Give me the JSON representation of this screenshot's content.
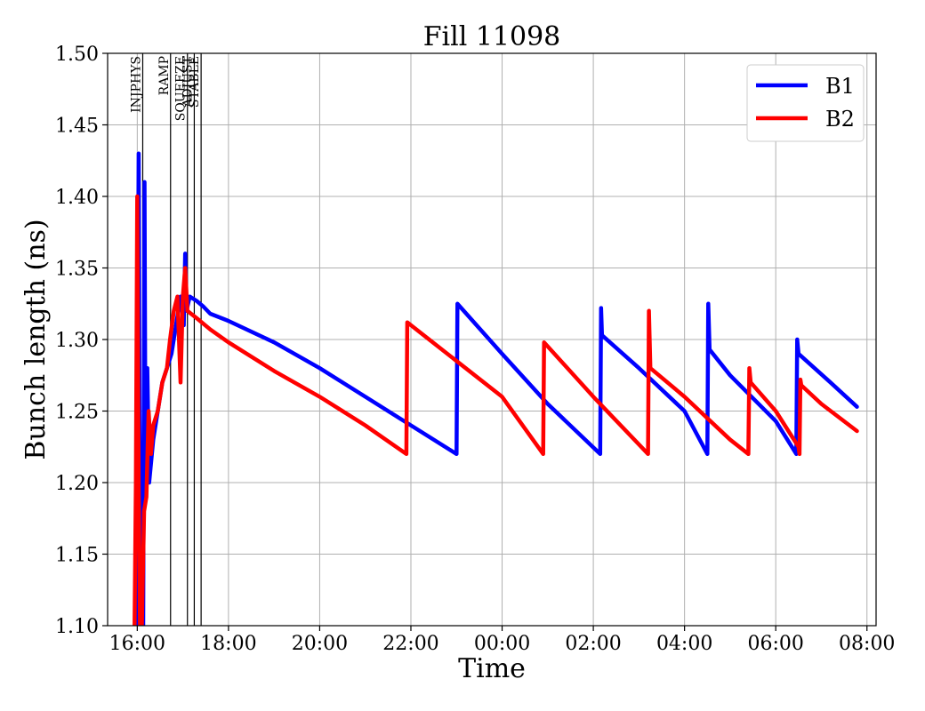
{
  "chart_data": {
    "type": "line",
    "title": "Fill 11098",
    "xlabel": "Time",
    "ylabel": "Bunch length (ns)",
    "x_unit": "hours since 16:00",
    "xlim": [
      -0.65,
      16.2
    ],
    "ylim": [
      1.1,
      1.5
    ],
    "x_ticks": [
      {
        "value": 0,
        "label": "16:00"
      },
      {
        "value": 2,
        "label": "18:00"
      },
      {
        "value": 4,
        "label": "20:00"
      },
      {
        "value": 6,
        "label": "22:00"
      },
      {
        "value": 8,
        "label": "00:00"
      },
      {
        "value": 10,
        "label": "02:00"
      },
      {
        "value": 12,
        "label": "04:00"
      },
      {
        "value": 14,
        "label": "06:00"
      },
      {
        "value": 16,
        "label": "08:00"
      }
    ],
    "y_ticks": [
      {
        "value": 1.1,
        "label": "1.10"
      },
      {
        "value": 1.15,
        "label": "1.15"
      },
      {
        "value": 1.2,
        "label": "1.20"
      },
      {
        "value": 1.25,
        "label": "1.25"
      },
      {
        "value": 1.3,
        "label": "1.30"
      },
      {
        "value": 1.35,
        "label": "1.35"
      },
      {
        "value": 1.4,
        "label": "1.40"
      },
      {
        "value": 1.45,
        "label": "1.45"
      },
      {
        "value": 1.5,
        "label": "1.50"
      }
    ],
    "grid": true,
    "legend": "top-right",
    "phases": [
      {
        "name": "INJPHYS",
        "x": 0.12
      },
      {
        "name": "RAMP",
        "x": 0.73
      },
      {
        "name": "SQUEEZE",
        "x": 1.1
      },
      {
        "name": "ADJUST",
        "x": 1.25
      },
      {
        "name": "STABLE",
        "x": 1.4
      }
    ],
    "series": [
      {
        "name": "B1",
        "color": "#0000ff",
        "points": [
          [
            -0.02,
            1.1
          ],
          [
            0.0,
            1.22
          ],
          [
            0.03,
            1.43
          ],
          [
            0.05,
            1.25
          ],
          [
            0.08,
            1.1
          ],
          [
            0.13,
            1.1
          ],
          [
            0.16,
            1.41
          ],
          [
            0.18,
            1.2
          ],
          [
            0.22,
            1.28
          ],
          [
            0.26,
            1.2
          ],
          [
            0.35,
            1.23
          ],
          [
            0.45,
            1.25
          ],
          [
            0.55,
            1.27
          ],
          [
            0.65,
            1.28
          ],
          [
            0.75,
            1.29
          ],
          [
            0.85,
            1.31
          ],
          [
            0.95,
            1.33
          ],
          [
            1.02,
            1.31
          ],
          [
            1.05,
            1.36
          ],
          [
            1.08,
            1.32
          ],
          [
            1.15,
            1.33
          ],
          [
            1.3,
            1.327
          ],
          [
            1.45,
            1.323
          ],
          [
            1.6,
            1.318
          ],
          [
            2.0,
            1.313
          ],
          [
            3.0,
            1.298
          ],
          [
            4.0,
            1.28
          ],
          [
            5.0,
            1.26
          ],
          [
            6.0,
            1.24
          ],
          [
            7.0,
            1.22
          ],
          [
            7.02,
            1.325
          ],
          [
            8.0,
            1.29
          ],
          [
            9.0,
            1.255
          ],
          [
            10.15,
            1.22
          ],
          [
            10.17,
            1.322
          ],
          [
            10.19,
            1.303
          ],
          [
            11.0,
            1.28
          ],
          [
            12.0,
            1.25
          ],
          [
            12.5,
            1.22
          ],
          [
            12.52,
            1.325
          ],
          [
            12.55,
            1.293
          ],
          [
            13.0,
            1.275
          ],
          [
            14.0,
            1.243
          ],
          [
            14.45,
            1.22
          ],
          [
            14.47,
            1.3
          ],
          [
            14.5,
            1.29
          ],
          [
            15.2,
            1.27
          ],
          [
            15.78,
            1.253
          ]
        ]
      },
      {
        "name": "B2",
        "color": "#ff0000",
        "points": [
          [
            -0.06,
            1.1
          ],
          [
            -0.03,
            1.2
          ],
          [
            0.0,
            1.4
          ],
          [
            0.03,
            1.2
          ],
          [
            0.06,
            1.1
          ],
          [
            0.1,
            1.1
          ],
          [
            0.15,
            1.18
          ],
          [
            0.2,
            1.19
          ],
          [
            0.25,
            1.25
          ],
          [
            0.3,
            1.22
          ],
          [
            0.35,
            1.24
          ],
          [
            0.45,
            1.25
          ],
          [
            0.55,
            1.27
          ],
          [
            0.65,
            1.28
          ],
          [
            0.72,
            1.3
          ],
          [
            0.8,
            1.32
          ],
          [
            0.88,
            1.33
          ],
          [
            0.95,
            1.27
          ],
          [
            1.0,
            1.33
          ],
          [
            1.05,
            1.35
          ],
          [
            1.1,
            1.32
          ],
          [
            1.3,
            1.315
          ],
          [
            1.6,
            1.307
          ],
          [
            2.0,
            1.298
          ],
          [
            3.0,
            1.278
          ],
          [
            4.0,
            1.26
          ],
          [
            5.0,
            1.24
          ],
          [
            5.9,
            1.22
          ],
          [
            5.92,
            1.312
          ],
          [
            6.0,
            1.31
          ],
          [
            7.0,
            1.285
          ],
          [
            8.0,
            1.26
          ],
          [
            8.9,
            1.22
          ],
          [
            8.92,
            1.298
          ],
          [
            10.0,
            1.26
          ],
          [
            11.2,
            1.22
          ],
          [
            11.22,
            1.32
          ],
          [
            11.25,
            1.28
          ],
          [
            12.0,
            1.26
          ],
          [
            13.0,
            1.23
          ],
          [
            13.4,
            1.22
          ],
          [
            13.42,
            1.28
          ],
          [
            13.45,
            1.27
          ],
          [
            14.0,
            1.25
          ],
          [
            14.5,
            1.225
          ],
          [
            14.52,
            1.22
          ],
          [
            14.54,
            1.272
          ],
          [
            14.56,
            1.268
          ],
          [
            15.0,
            1.255
          ],
          [
            15.78,
            1.236
          ]
        ]
      }
    ]
  }
}
